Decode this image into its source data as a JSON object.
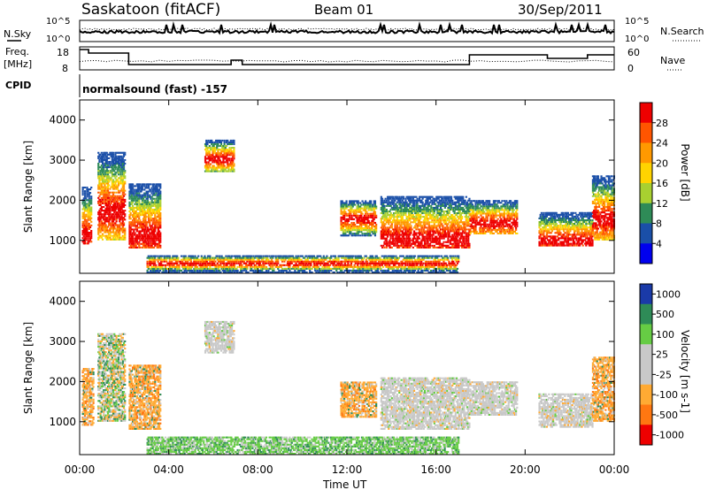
{
  "header": {
    "station": "Saskatoon (fitACF)",
    "beam": "Beam 01",
    "date": "30/Sep/2011"
  },
  "top_panels": {
    "nsky_label": "N.Sky",
    "nsky_ticks": [
      "10^5",
      "10^0"
    ],
    "nsearch_label": "N.Search",
    "nsearch_ticks": [
      "10^5",
      "10^0"
    ],
    "freq_label_1": "Freq.",
    "freq_label_2": "[MHz]",
    "freq_ticks": [
      "18",
      "8"
    ],
    "nave_label": "Nave",
    "nave_ticks": [
      "60",
      "0"
    ],
    "cpid_label": "CPID",
    "cpid_text": "normalsound (fast) -157"
  },
  "chart_data": [
    {
      "type": "heatmap",
      "name": "power",
      "ylabel": "Slant Range [km]",
      "yticks": [
        "4000",
        "3000",
        "2000",
        "1000"
      ],
      "ylim": [
        180,
        4500
      ],
      "colorbar_label": "Power [dB]",
      "colorbar_ticks": [
        "28",
        "24",
        "20",
        "16",
        "12",
        "8",
        "4"
      ],
      "colorbar_colors": [
        "#ee0000",
        "#ff5500",
        "#ff9900",
        "#ffd400",
        "#a8d030",
        "#2e8b57",
        "#1a4fa8",
        "#0000ee"
      ],
      "echo_regions": [
        {
          "t0": 0.1,
          "t1": 0.5,
          "r0": 900,
          "r1": 2300,
          "peak": 1100
        },
        {
          "t0": 0.8,
          "t1": 2.0,
          "r0": 1000,
          "r1": 3200,
          "peak": 1700
        },
        {
          "t0": 2.2,
          "t1": 3.6,
          "r0": 800,
          "r1": 2400,
          "peak": 1100
        },
        {
          "t0": 5.6,
          "t1": 6.9,
          "r0": 2700,
          "r1": 3500,
          "peak": 3000
        },
        {
          "t0": 11.7,
          "t1": 13.3,
          "r0": 1100,
          "r1": 2000,
          "peak": 1500
        },
        {
          "t0": 13.5,
          "t1": 17.5,
          "r0": 800,
          "r1": 2100,
          "peak": 1000
        },
        {
          "t0": 17.5,
          "t1": 19.6,
          "r0": 1150,
          "r1": 2000,
          "peak": 1400
        },
        {
          "t0": 20.6,
          "t1": 23.0,
          "r0": 850,
          "r1": 1700,
          "peak": 950
        },
        {
          "t0": 23.0,
          "t1": 24.0,
          "r0": 1000,
          "r1": 2600,
          "peak": 1500
        },
        {
          "t0": 3.0,
          "t1": 17.0,
          "r0": 180,
          "r1": 600,
          "peak": 400
        }
      ]
    },
    {
      "type": "heatmap",
      "name": "velocity",
      "xlabel": "Time UT",
      "ylabel": "Slant Range [km]",
      "xticks": [
        "00:00",
        "04:00",
        "08:00",
        "12:00",
        "16:00",
        "20:00",
        "00:00"
      ],
      "xlim": [
        0,
        24
      ],
      "yticks": [
        "4000",
        "3000",
        "2000",
        "1000"
      ],
      "ylim": [
        180,
        4500
      ],
      "colorbar_label": "Velocity [m s-1]",
      "colorbar_ticks": [
        "1000",
        "500",
        "100",
        "25",
        "-25",
        "-100",
        "-500",
        "-1000"
      ],
      "colorbar_colors": [
        "#1a3aa8",
        "#2e8b57",
        "#66cc44",
        "#c8c8c8",
        "#c8c8c8",
        "#ffaa33",
        "#ff7711",
        "#ee0000"
      ],
      "echo_regions": [
        {
          "t0": 0.1,
          "t1": 0.6,
          "r0": 900,
          "r1": 2300,
          "class": "negative"
        },
        {
          "t0": 0.8,
          "t1": 2.0,
          "r0": 1000,
          "r1": 3200,
          "class": "mixed"
        },
        {
          "t0": 2.2,
          "t1": 3.6,
          "r0": 800,
          "r1": 2400,
          "class": "negative"
        },
        {
          "t0": 5.6,
          "t1": 6.9,
          "r0": 2700,
          "r1": 3500,
          "class": "neutral"
        },
        {
          "t0": 11.7,
          "t1": 13.3,
          "r0": 1100,
          "r1": 2000,
          "class": "negative"
        },
        {
          "t0": 13.5,
          "t1": 17.5,
          "r0": 800,
          "r1": 2100,
          "class": "neutral"
        },
        {
          "t0": 17.5,
          "t1": 19.6,
          "r0": 1150,
          "r1": 2000,
          "class": "neutral"
        },
        {
          "t0": 20.6,
          "t1": 23.0,
          "r0": 850,
          "r1": 1700,
          "class": "neutral"
        },
        {
          "t0": 23.0,
          "t1": 24.0,
          "r0": 1000,
          "r1": 2600,
          "class": "negative"
        },
        {
          "t0": 3.0,
          "t1": 17.0,
          "r0": 180,
          "r1": 600,
          "class": "positive"
        }
      ]
    }
  ]
}
